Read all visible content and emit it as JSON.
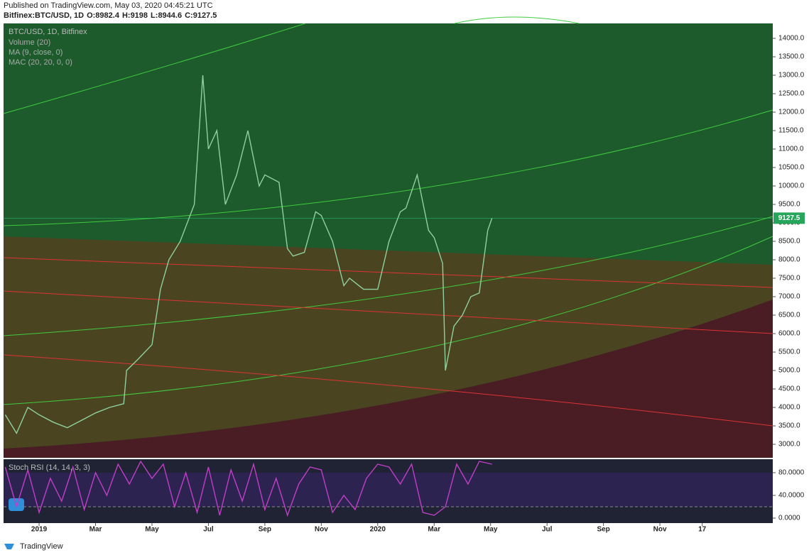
{
  "header": {
    "source": "Published on TradingView.com, May 03, 2020 04:45:21 UTC",
    "symbol": "Bitfinex:BTC/USD, 1D",
    "ohlc": [
      {
        "label": "O:",
        "value": 8982.4
      },
      {
        "label": "H:",
        "value": 9198.0
      },
      {
        "label": "L:",
        "value": 8944.6
      },
      {
        "label": "C:",
        "value": 9127.5
      }
    ]
  },
  "footer": {
    "brand": "TradingView"
  },
  "chart_data": [
    {
      "type": "line",
      "title": "BTC/USD, 1D, Bitfinex",
      "indicators": [
        "Volume (20)",
        "MA (9, close, 0)",
        "MAC (20, 20, 0, 0)"
      ],
      "color": "#8fd19e",
      "x": [
        -1.2,
        -0.8,
        -0.4,
        0,
        0.5,
        1,
        1.5,
        2,
        2.5,
        3,
        3.1,
        3.5,
        4,
        4.3,
        4.6,
        5,
        5.5,
        5.8,
        6,
        6.3,
        6.6,
        7,
        7.4,
        7.8,
        8,
        8.5,
        8.8,
        9,
        9.4,
        9.8,
        10,
        10.4,
        10.8,
        11,
        11.5,
        12,
        12.4,
        12.8,
        13,
        13.4,
        13.8,
        14,
        14.3,
        14.4,
        14.7,
        15,
        15.3,
        15.6,
        15.9,
        16.05
      ],
      "values": [
        3800,
        3300,
        4000,
        3800,
        3600,
        3450,
        3650,
        3850,
        4000,
        4100,
        5000,
        5300,
        5700,
        7200,
        8000,
        8500,
        9500,
        13000,
        11000,
        11500,
        9500,
        10300,
        11500,
        10000,
        10300,
        10100,
        8300,
        8100,
        8200,
        9300,
        9200,
        8500,
        7300,
        7500,
        7200,
        7200,
        8500,
        9300,
        9400,
        10300,
        8800,
        8600,
        7900,
        5000,
        6200,
        6500,
        7000,
        7100,
        8800,
        9127.5
      ],
      "xlim": [
        -1.26,
        26.0
      ],
      "ylim": [
        2635,
        14404
      ],
      "yticks": [
        {
          "value": 3000,
          "label": "3000.0"
        },
        {
          "value": 3500,
          "label": "3500.0"
        },
        {
          "value": 4000,
          "label": "4000.0"
        },
        {
          "value": 4500,
          "label": "4500.0"
        },
        {
          "value": 5000,
          "label": "5000.0"
        },
        {
          "value": 5500,
          "label": "5500.0"
        },
        {
          "value": 6000,
          "label": "6000.0"
        },
        {
          "value": 6500,
          "label": "6500.0"
        },
        {
          "value": 7000,
          "label": "7000.0"
        },
        {
          "value": 7500,
          "label": "7500.0"
        },
        {
          "value": 8000,
          "label": "8000.0"
        },
        {
          "value": 8500,
          "label": "8500.0"
        },
        {
          "value": 9000,
          "label": "9000.0"
        },
        {
          "value": 9500,
          "label": "9500.0"
        },
        {
          "value": 10000,
          "label": "10000.0"
        },
        {
          "value": 10500,
          "label": "10500.0"
        },
        {
          "value": 11000,
          "label": "11000.0"
        },
        {
          "value": 11500,
          "label": "11500.0"
        },
        {
          "value": 12000,
          "label": "12000.0"
        },
        {
          "value": 12500,
          "label": "12500.0"
        },
        {
          "value": 13000,
          "label": "13000.0"
        },
        {
          "value": 13500,
          "label": "13500.0"
        },
        {
          "value": 14000,
          "label": "14000.0"
        }
      ]
    },
    {
      "type": "line",
      "title": "Stoch RSI (14, 14, 3, 3)",
      "color": "#c03fc8",
      "x": [
        -1.2,
        -0.8,
        -0.4,
        0,
        0.4,
        0.8,
        1.2,
        1.6,
        2,
        2.4,
        2.8,
        3.2,
        3.6,
        4,
        4.4,
        4.8,
        5.2,
        5.6,
        6,
        6.4,
        6.8,
        7.2,
        7.6,
        8,
        8.4,
        8.8,
        9.2,
        9.6,
        10,
        10.4,
        10.8,
        11.2,
        11.6,
        12,
        12.4,
        12.8,
        13.2,
        13.6,
        14,
        14.4,
        14.8,
        15.2,
        15.6,
        16.05
      ],
      "values": [
        90,
        20,
        85,
        10,
        70,
        30,
        90,
        15,
        80,
        40,
        95,
        60,
        100,
        70,
        95,
        20,
        80,
        10,
        90,
        5,
        85,
        30,
        95,
        15,
        70,
        5,
        60,
        90,
        85,
        10,
        40,
        15,
        70,
        95,
        90,
        60,
        95,
        10,
        5,
        20,
        95,
        60,
        100,
        95
      ],
      "xlim": [
        -1.26,
        26.0
      ],
      "ylim": [
        -8.75,
        103.75
      ],
      "yticks": [
        {
          "value": 0,
          "label": "0.0000"
        },
        {
          "value": 40,
          "label": "40.0000"
        },
        {
          "value": 80,
          "label": "80.0000"
        }
      ],
      "xticks": [
        {
          "value": 0,
          "label": "2019"
        },
        {
          "value": 2,
          "label": "Mar"
        },
        {
          "value": 4,
          "label": "May"
        },
        {
          "value": 6,
          "label": "Jul"
        },
        {
          "value": 8,
          "label": "Sep"
        },
        {
          "value": 10,
          "label": "Nov"
        },
        {
          "value": 12,
          "label": "2020"
        },
        {
          "value": 14,
          "label": "Mar"
        },
        {
          "value": 16,
          "label": "May"
        },
        {
          "value": 18,
          "label": "Jul"
        },
        {
          "value": 20,
          "label": "Sep"
        },
        {
          "value": 22,
          "label": "Nov"
        },
        {
          "value": 23.5,
          "label": "17"
        }
      ]
    }
  ]
}
